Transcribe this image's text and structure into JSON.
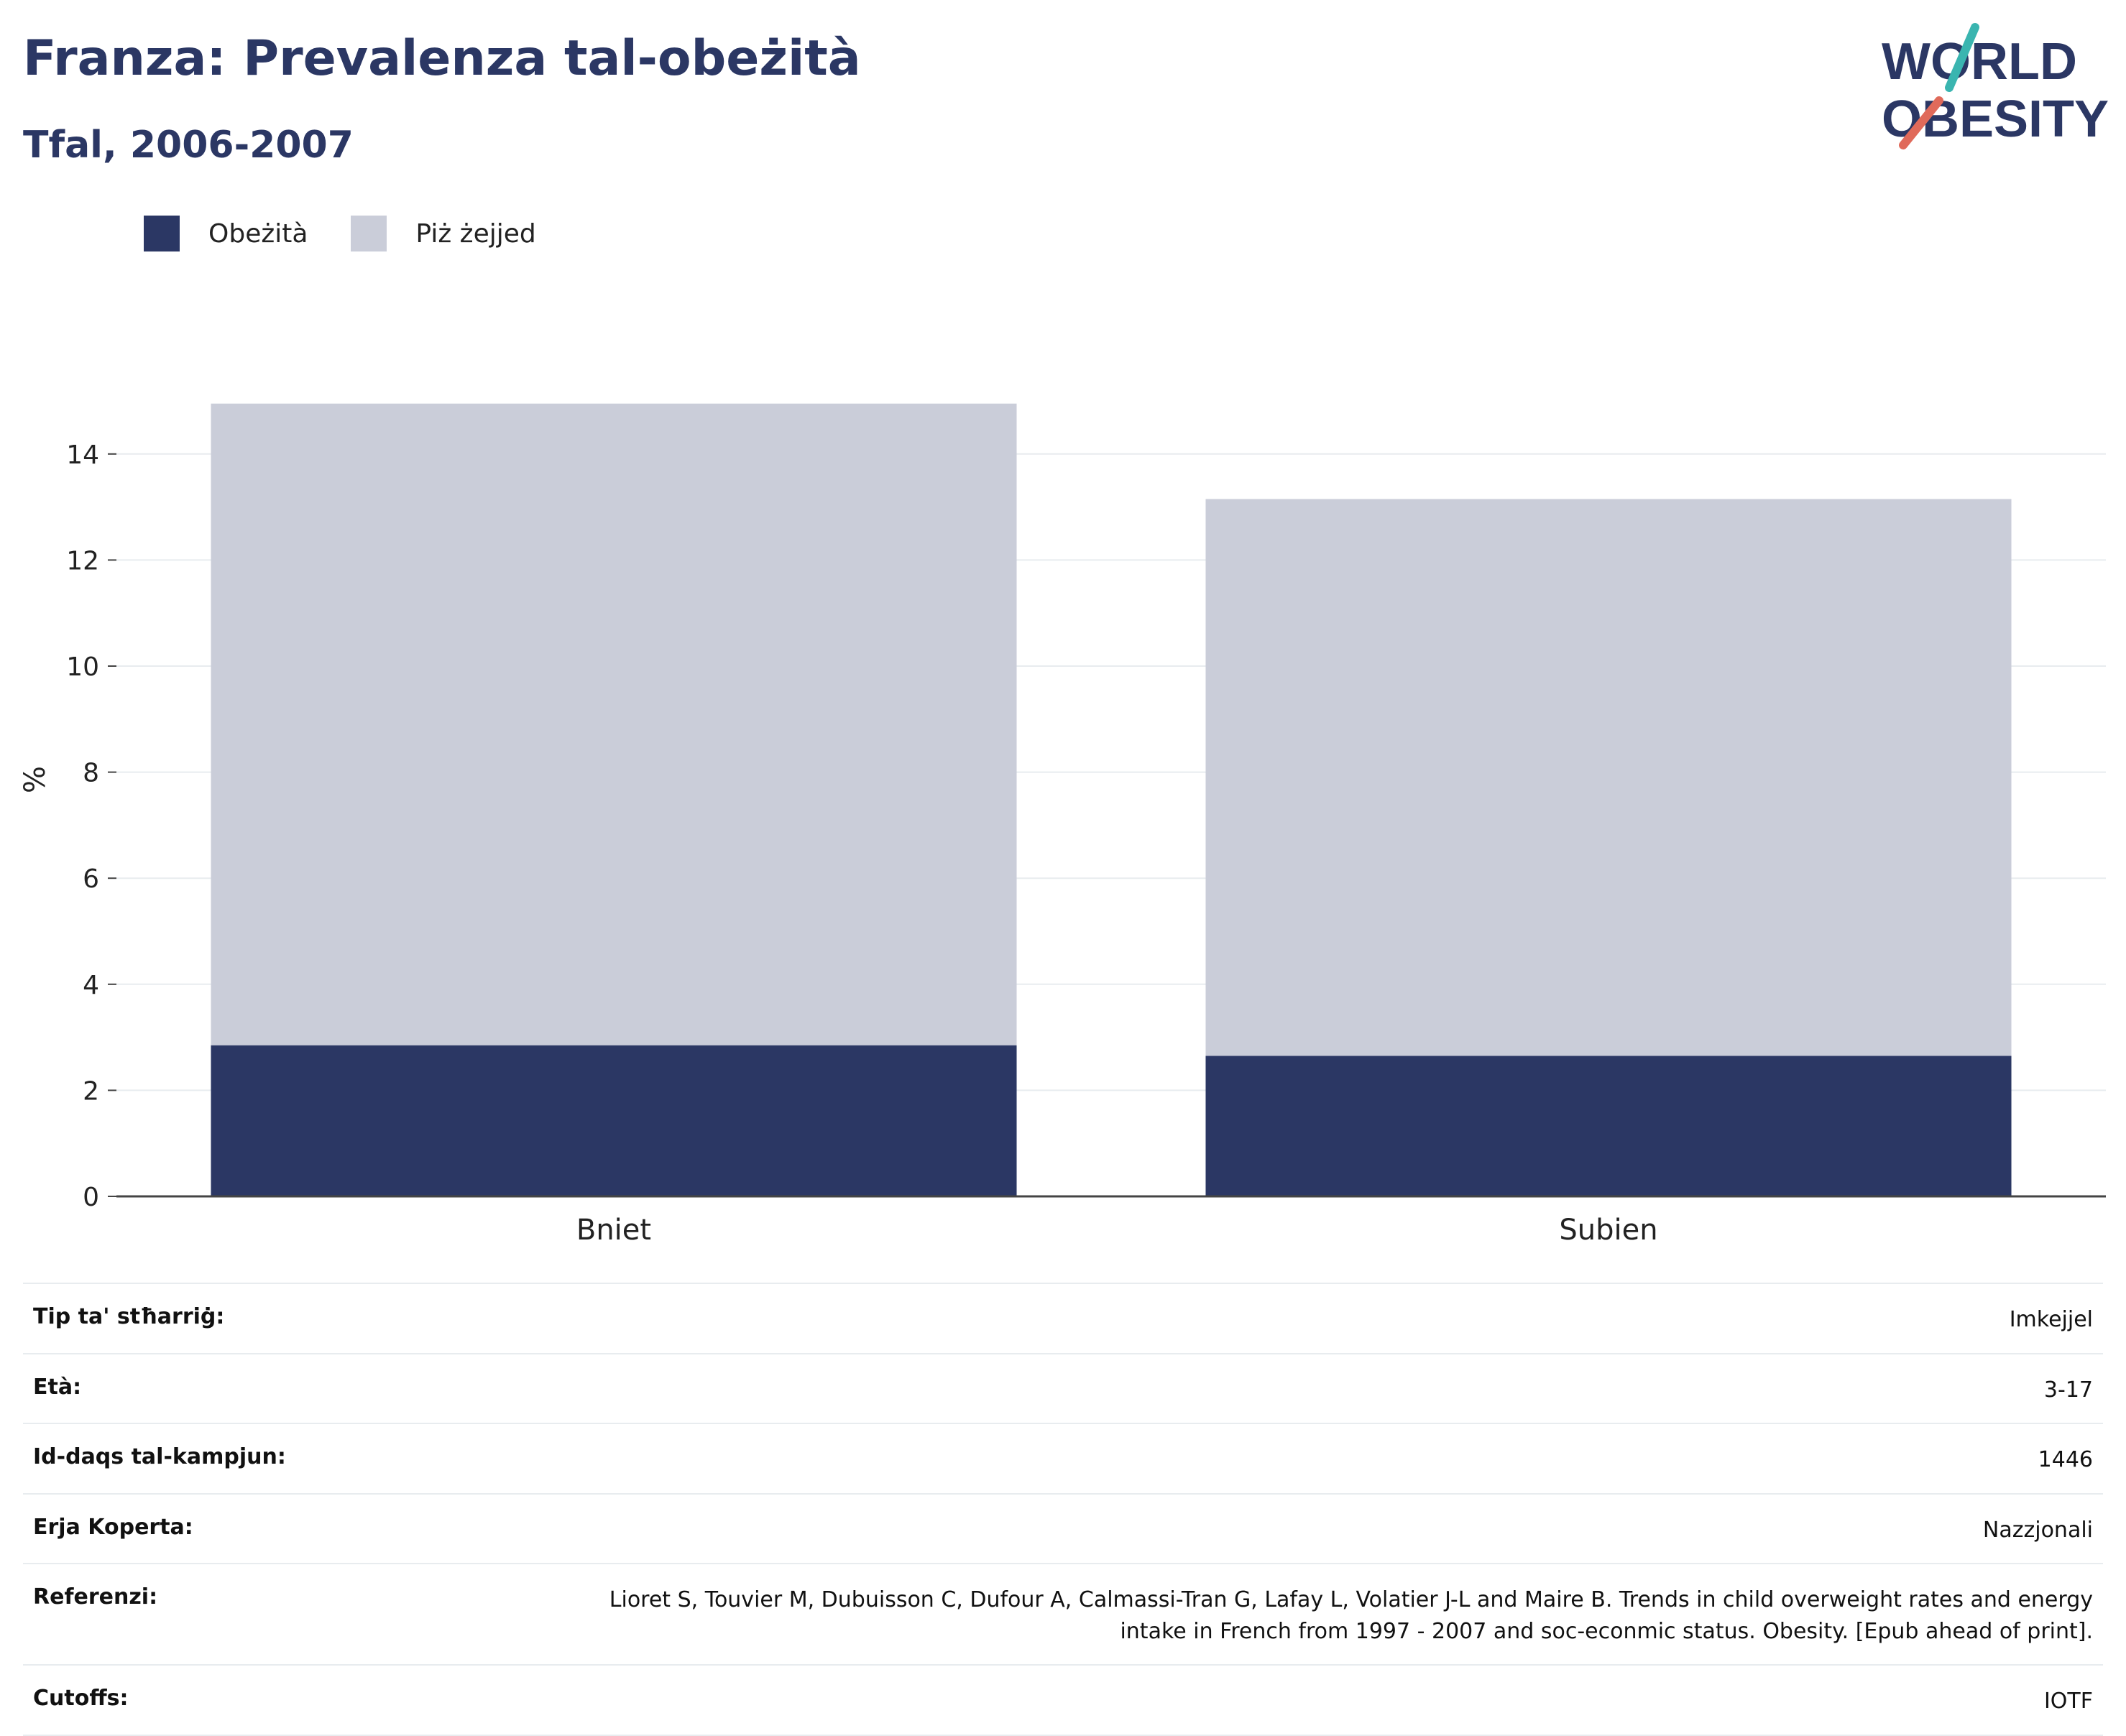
{
  "header": {
    "title": "Franza: Prevalenza tal-obeżità",
    "subtitle": "Tfal, 2006-2007"
  },
  "logo": {
    "line1": "WORLD",
    "line2": "OBESITY"
  },
  "colors": {
    "obesity": "#2b3764",
    "overweight": "#cacdd9",
    "title": "#2b3764",
    "grid": "#e8ecef",
    "logo_teal": "#3ab5b0",
    "logo_coral": "#e06a5a"
  },
  "chart_data": {
    "type": "bar",
    "stacked": true,
    "categories": [
      "Bniet",
      "Subien"
    ],
    "series": [
      {
        "name": "Obeżità",
        "values": [
          2.85,
          2.65
        ]
      },
      {
        "name": "Piż żejjed",
        "values": [
          12.1,
          10.5
        ]
      }
    ],
    "ylabel": "%",
    "ylim": [
      0,
      15
    ],
    "yticks": [
      0,
      2,
      4,
      6,
      8,
      10,
      12,
      14
    ],
    "grid": true,
    "legend": "top-left"
  },
  "meta": [
    {
      "label": "Tip ta' stħarriġ:",
      "value": "Imkejjel"
    },
    {
      "label": "Età:",
      "value": "3-17"
    },
    {
      "label": "Id-daqs tal-kampjun:",
      "value": "1446"
    },
    {
      "label": "Erja Koperta:",
      "value": "Nazzjonali"
    },
    {
      "label": "Referenzi:",
      "value": "Lioret S, Touvier M, Dubuisson C, Dufour A, Calmassi-Tran G, Lafay L, Volatier J-L and Maire B. Trends in child overweight rates and energy intake in French from 1997 - 2007 and soc-econmic status. Obesity. [Epub ahead of print]."
    },
    {
      "label": "Cutoffs:",
      "value": "IOTF"
    }
  ]
}
